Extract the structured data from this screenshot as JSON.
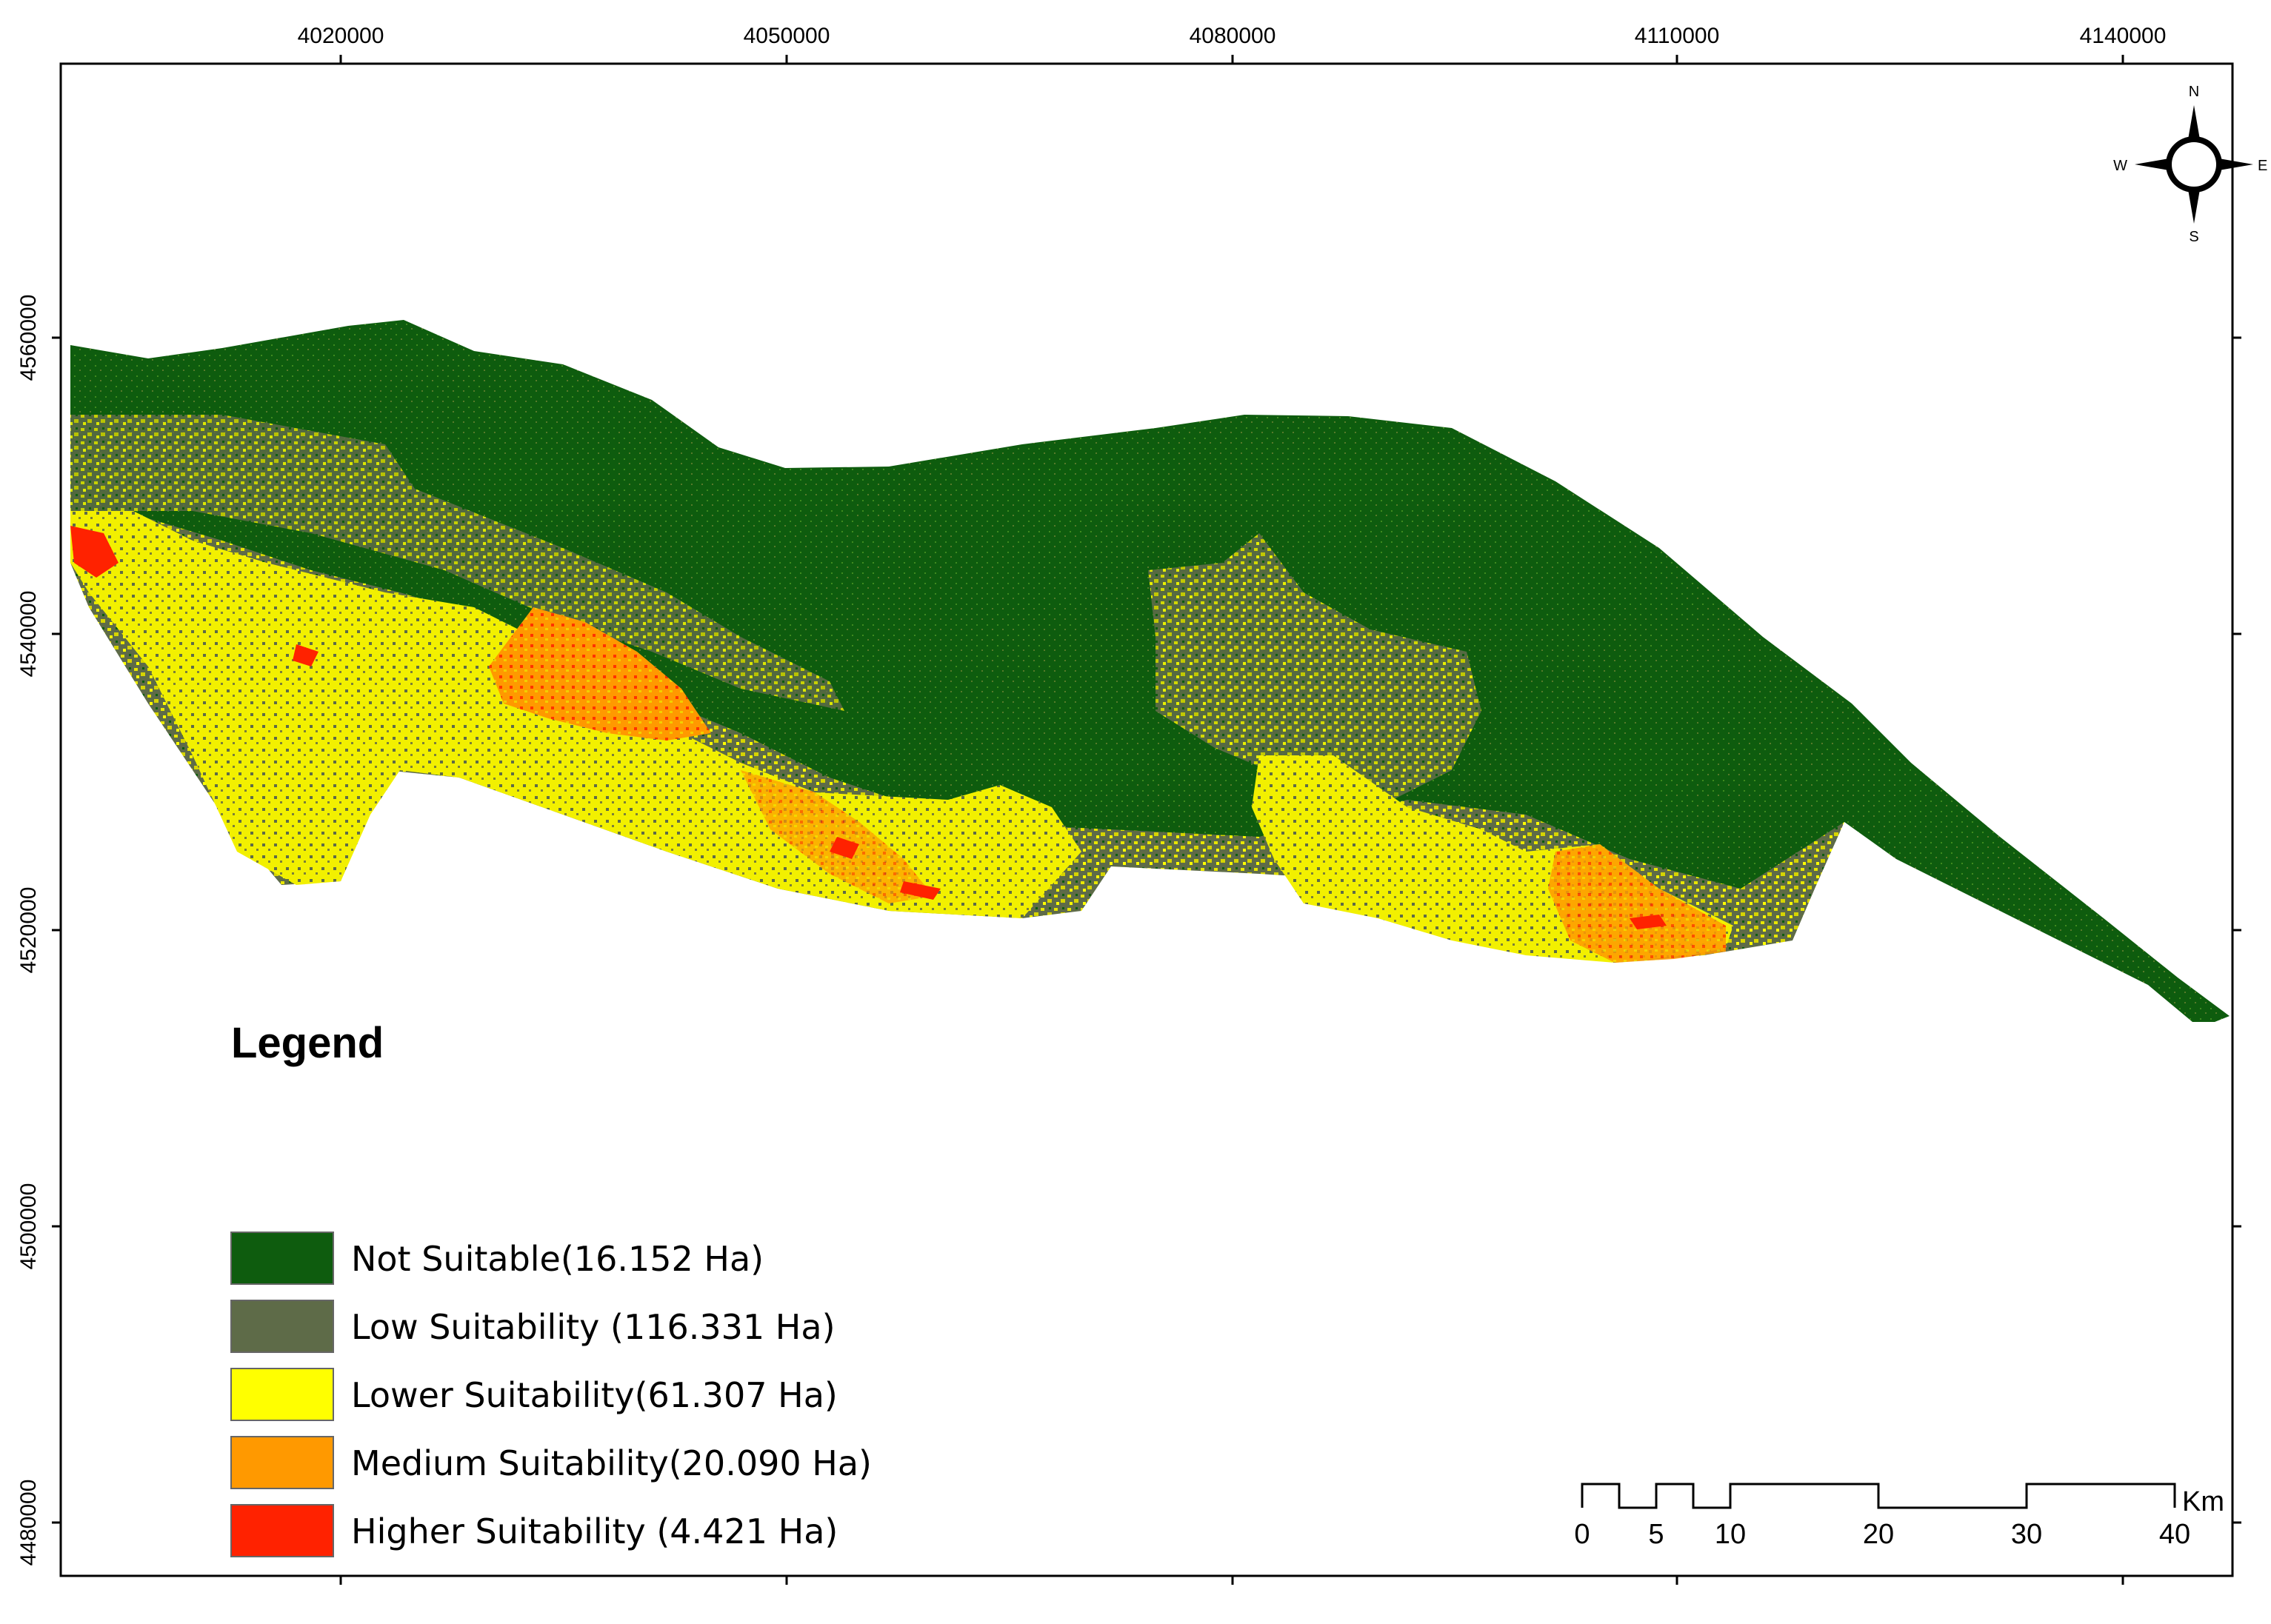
{
  "map": {
    "x_ticks": [
      "4020000",
      "4050000",
      "4080000",
      "4110000",
      "4140000"
    ],
    "y_ticks": [
      "4560000",
      "4540000",
      "4520000",
      "4500000",
      "4480000"
    ]
  },
  "compass": {
    "n": "N",
    "s": "S",
    "e": "E",
    "w": "W"
  },
  "legend": {
    "title": "Legend",
    "items": [
      {
        "label": "Not Suitable",
        "area": "(16.152 Ha)",
        "color": "#0e5c0e"
      },
      {
        "label": "Low Suitability",
        "area": "(116.331 Ha)",
        "color": "#5e6b48"
      },
      {
        "label": "Lower Suitability",
        "area": "(61.307 Ha)",
        "color": "#ffff00"
      },
      {
        "label": "Medium Suitability",
        "area": "(20.090 Ha)",
        "color": "#ff9900"
      },
      {
        "label": "Higher Suitability",
        "area": "(4.421 Ha)",
        "color": "#ff2200"
      }
    ]
  },
  "scale_bar": {
    "labels": [
      "0",
      "5",
      "10",
      "20",
      "30",
      "40"
    ],
    "unit": "Km"
  }
}
